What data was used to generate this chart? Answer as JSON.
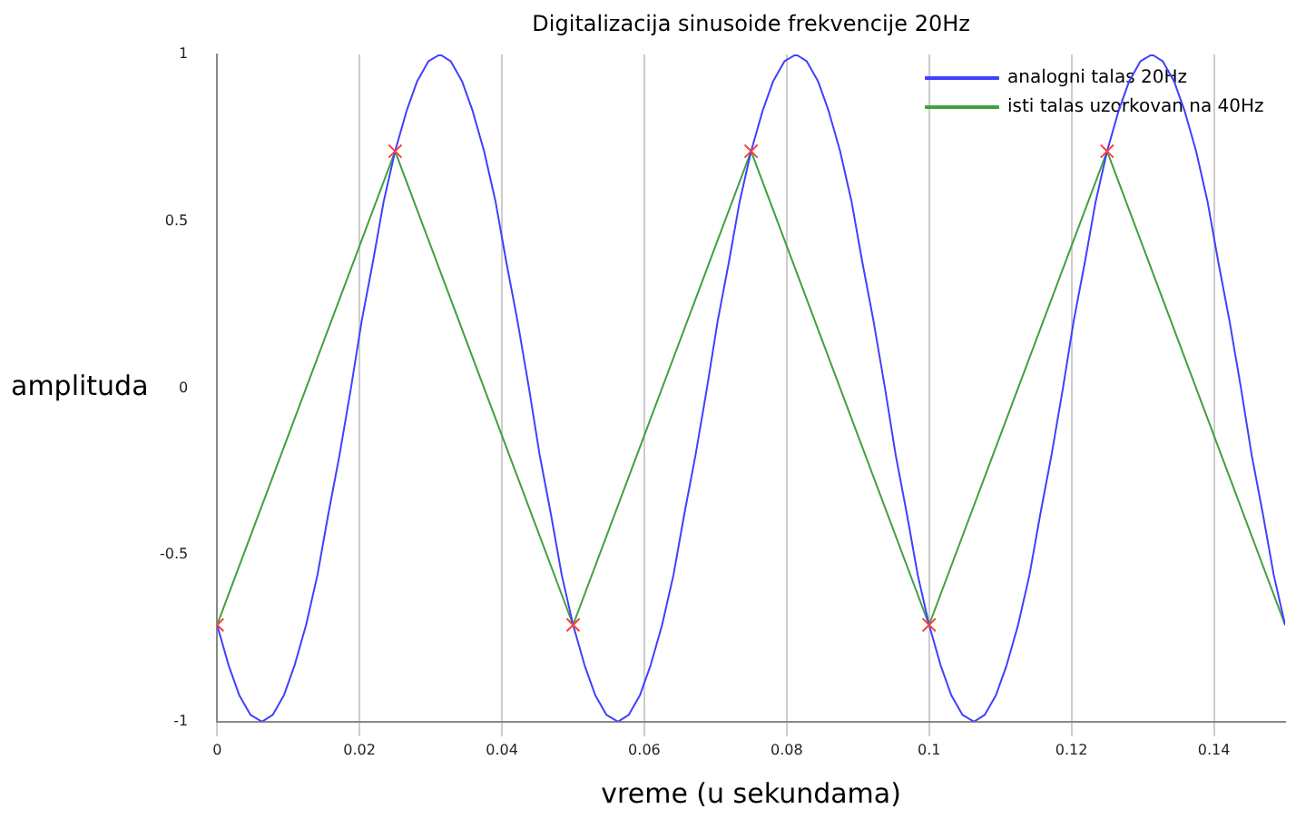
{
  "chart_data": {
    "type": "line",
    "title": "Digitalizacija sinusoide frekvencije 20Hz",
    "xlabel": "vreme (u sekundama)",
    "ylabel": "amplituda",
    "xlim": [
      0,
      0.15
    ],
    "ylim": [
      -1,
      1
    ],
    "xticks": [
      0,
      0.02,
      0.04,
      0.06,
      0.08,
      0.1,
      0.12,
      0.14
    ],
    "yticks": [
      -1,
      -0.5,
      0,
      0.5,
      1
    ],
    "grid": "x",
    "legend": "top right",
    "series": [
      {
        "name": "analogni talas 20Hz",
        "color": "#4040ff",
        "type": "line",
        "marker": "none",
        "x": [
          0,
          0.0016,
          0.0031,
          0.0047,
          0.0063,
          0.0078,
          0.0094,
          0.0109,
          0.0125,
          0.0141,
          0.0156,
          0.0172,
          0.0188,
          0.0203,
          0.0219,
          0.0234,
          0.025,
          0.0266,
          0.0281,
          0.0297,
          0.0313,
          0.0328,
          0.0344,
          0.0359,
          0.0375,
          0.0391,
          0.0406,
          0.0422,
          0.0438,
          0.0453,
          0.0469,
          0.0484,
          0.05,
          0.0516,
          0.0531,
          0.0547,
          0.0563,
          0.0578,
          0.0594,
          0.0609,
          0.0625,
          0.0641,
          0.0656,
          0.0672,
          0.0688,
          0.0703,
          0.0719,
          0.0734,
          0.075,
          0.0766,
          0.0781,
          0.0797,
          0.0813,
          0.0828,
          0.0844,
          0.0859,
          0.0875,
          0.0891,
          0.0906,
          0.0922,
          0.0938,
          0.0953,
          0.0969,
          0.0984,
          0.1,
          0.1016,
          0.1031,
          0.1047,
          0.1063,
          0.1078,
          0.1094,
          0.1109,
          0.1125,
          0.1141,
          0.1156,
          0.1172,
          0.1188,
          0.1203,
          0.1219,
          0.1234,
          0.125,
          0.1266,
          0.1281,
          0.1297,
          0.1313,
          0.1328,
          0.1344,
          0.1359,
          0.1375,
          0.1391,
          0.1406,
          0.1422,
          0.1438,
          0.1453,
          0.1469,
          0.1484,
          0.15
        ],
        "values": [
          -0.71,
          -0.83,
          -0.92,
          -0.98,
          -1,
          -0.98,
          -0.92,
          -0.83,
          -0.71,
          -0.56,
          -0.38,
          -0.2,
          0,
          0.2,
          0.38,
          0.56,
          0.71,
          0.83,
          0.92,
          0.98,
          1,
          0.98,
          0.92,
          0.83,
          0.71,
          0.56,
          0.38,
          0.2,
          0,
          -0.2,
          -0.38,
          -0.56,
          -0.71,
          -0.83,
          -0.92,
          -0.98,
          -1,
          -0.98,
          -0.92,
          -0.83,
          -0.71,
          -0.56,
          -0.38,
          -0.2,
          0,
          0.2,
          0.38,
          0.56,
          0.71,
          0.83,
          0.92,
          0.98,
          1,
          0.98,
          0.92,
          0.83,
          0.71,
          0.56,
          0.38,
          0.2,
          0,
          -0.2,
          -0.38,
          -0.56,
          -0.71,
          -0.83,
          -0.92,
          -0.98,
          -1,
          -0.98,
          -0.92,
          -0.83,
          -0.71,
          -0.56,
          -0.38,
          -0.2,
          0,
          0.2,
          0.38,
          0.56,
          0.71,
          0.83,
          0.92,
          0.98,
          1,
          0.98,
          0.92,
          0.83,
          0.71,
          0.56,
          0.38,
          0.2,
          0,
          -0.2,
          -0.38,
          -0.56,
          -0.71
        ]
      },
      {
        "name": "isti talas uzorkovan na 40Hz",
        "color": "#40a040",
        "type": "line",
        "marker": "none",
        "x": [
          0,
          0.025,
          0.05,
          0.075,
          0.1,
          0.125,
          0.15
        ],
        "values": [
          -0.71,
          0.71,
          -0.71,
          0.71,
          -0.71,
          0.71,
          -0.71
        ]
      },
      {
        "color": "#ff4040",
        "type": "scatter",
        "marker": "cross",
        "x": [
          0,
          0.025,
          0.05,
          0.075,
          0.1,
          0.125
        ],
        "values": [
          -0.71,
          0.71,
          -0.71,
          0.71,
          -0.71,
          0.71
        ]
      }
    ]
  }
}
